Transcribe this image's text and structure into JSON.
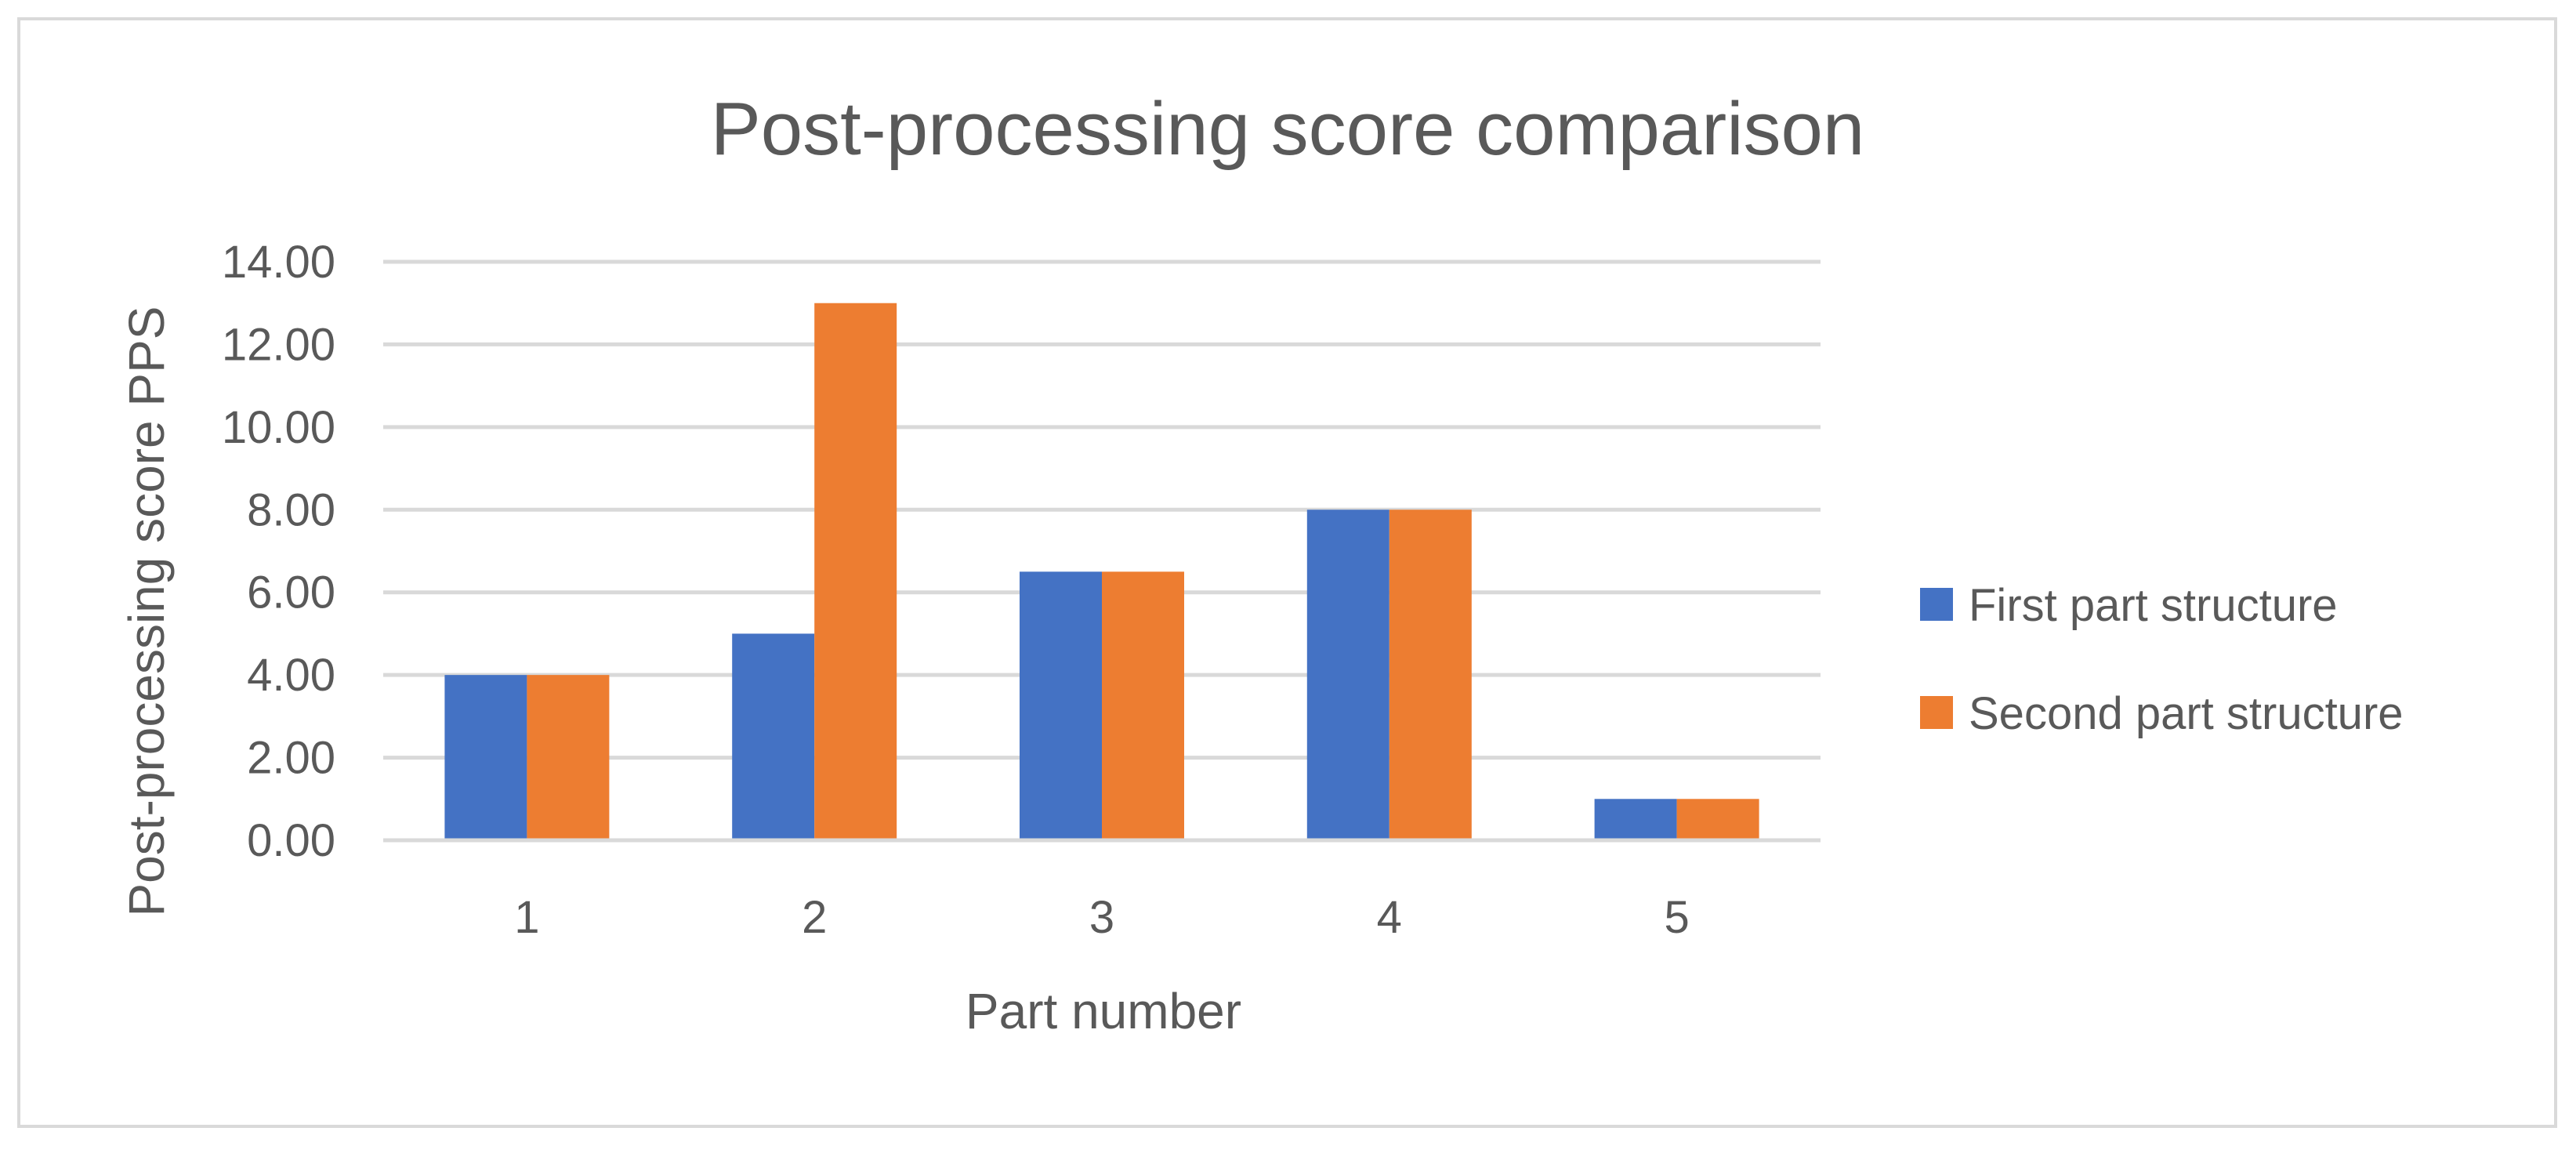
{
  "chart_data": {
    "type": "bar",
    "title": "Post-processing score comparison",
    "xlabel": "Part number",
    "ylabel": "Post-processing score PPS",
    "categories": [
      "1",
      "2",
      "3",
      "4",
      "5"
    ],
    "series": [
      {
        "name": "First part structure",
        "values": [
          4.0,
          5.0,
          6.5,
          8.0,
          1.0
        ],
        "color": "#4472C4"
      },
      {
        "name": "Second part structure",
        "values": [
          4.0,
          13.0,
          6.5,
          8.0,
          1.0
        ],
        "color": "#ED7D31"
      }
    ],
    "ylim": [
      0,
      14
    ],
    "yticks": [
      "0.00",
      "2.00",
      "4.00",
      "6.00",
      "8.00",
      "10.00",
      "12.00",
      "14.00"
    ],
    "grid": true,
    "legend_position": "right"
  }
}
